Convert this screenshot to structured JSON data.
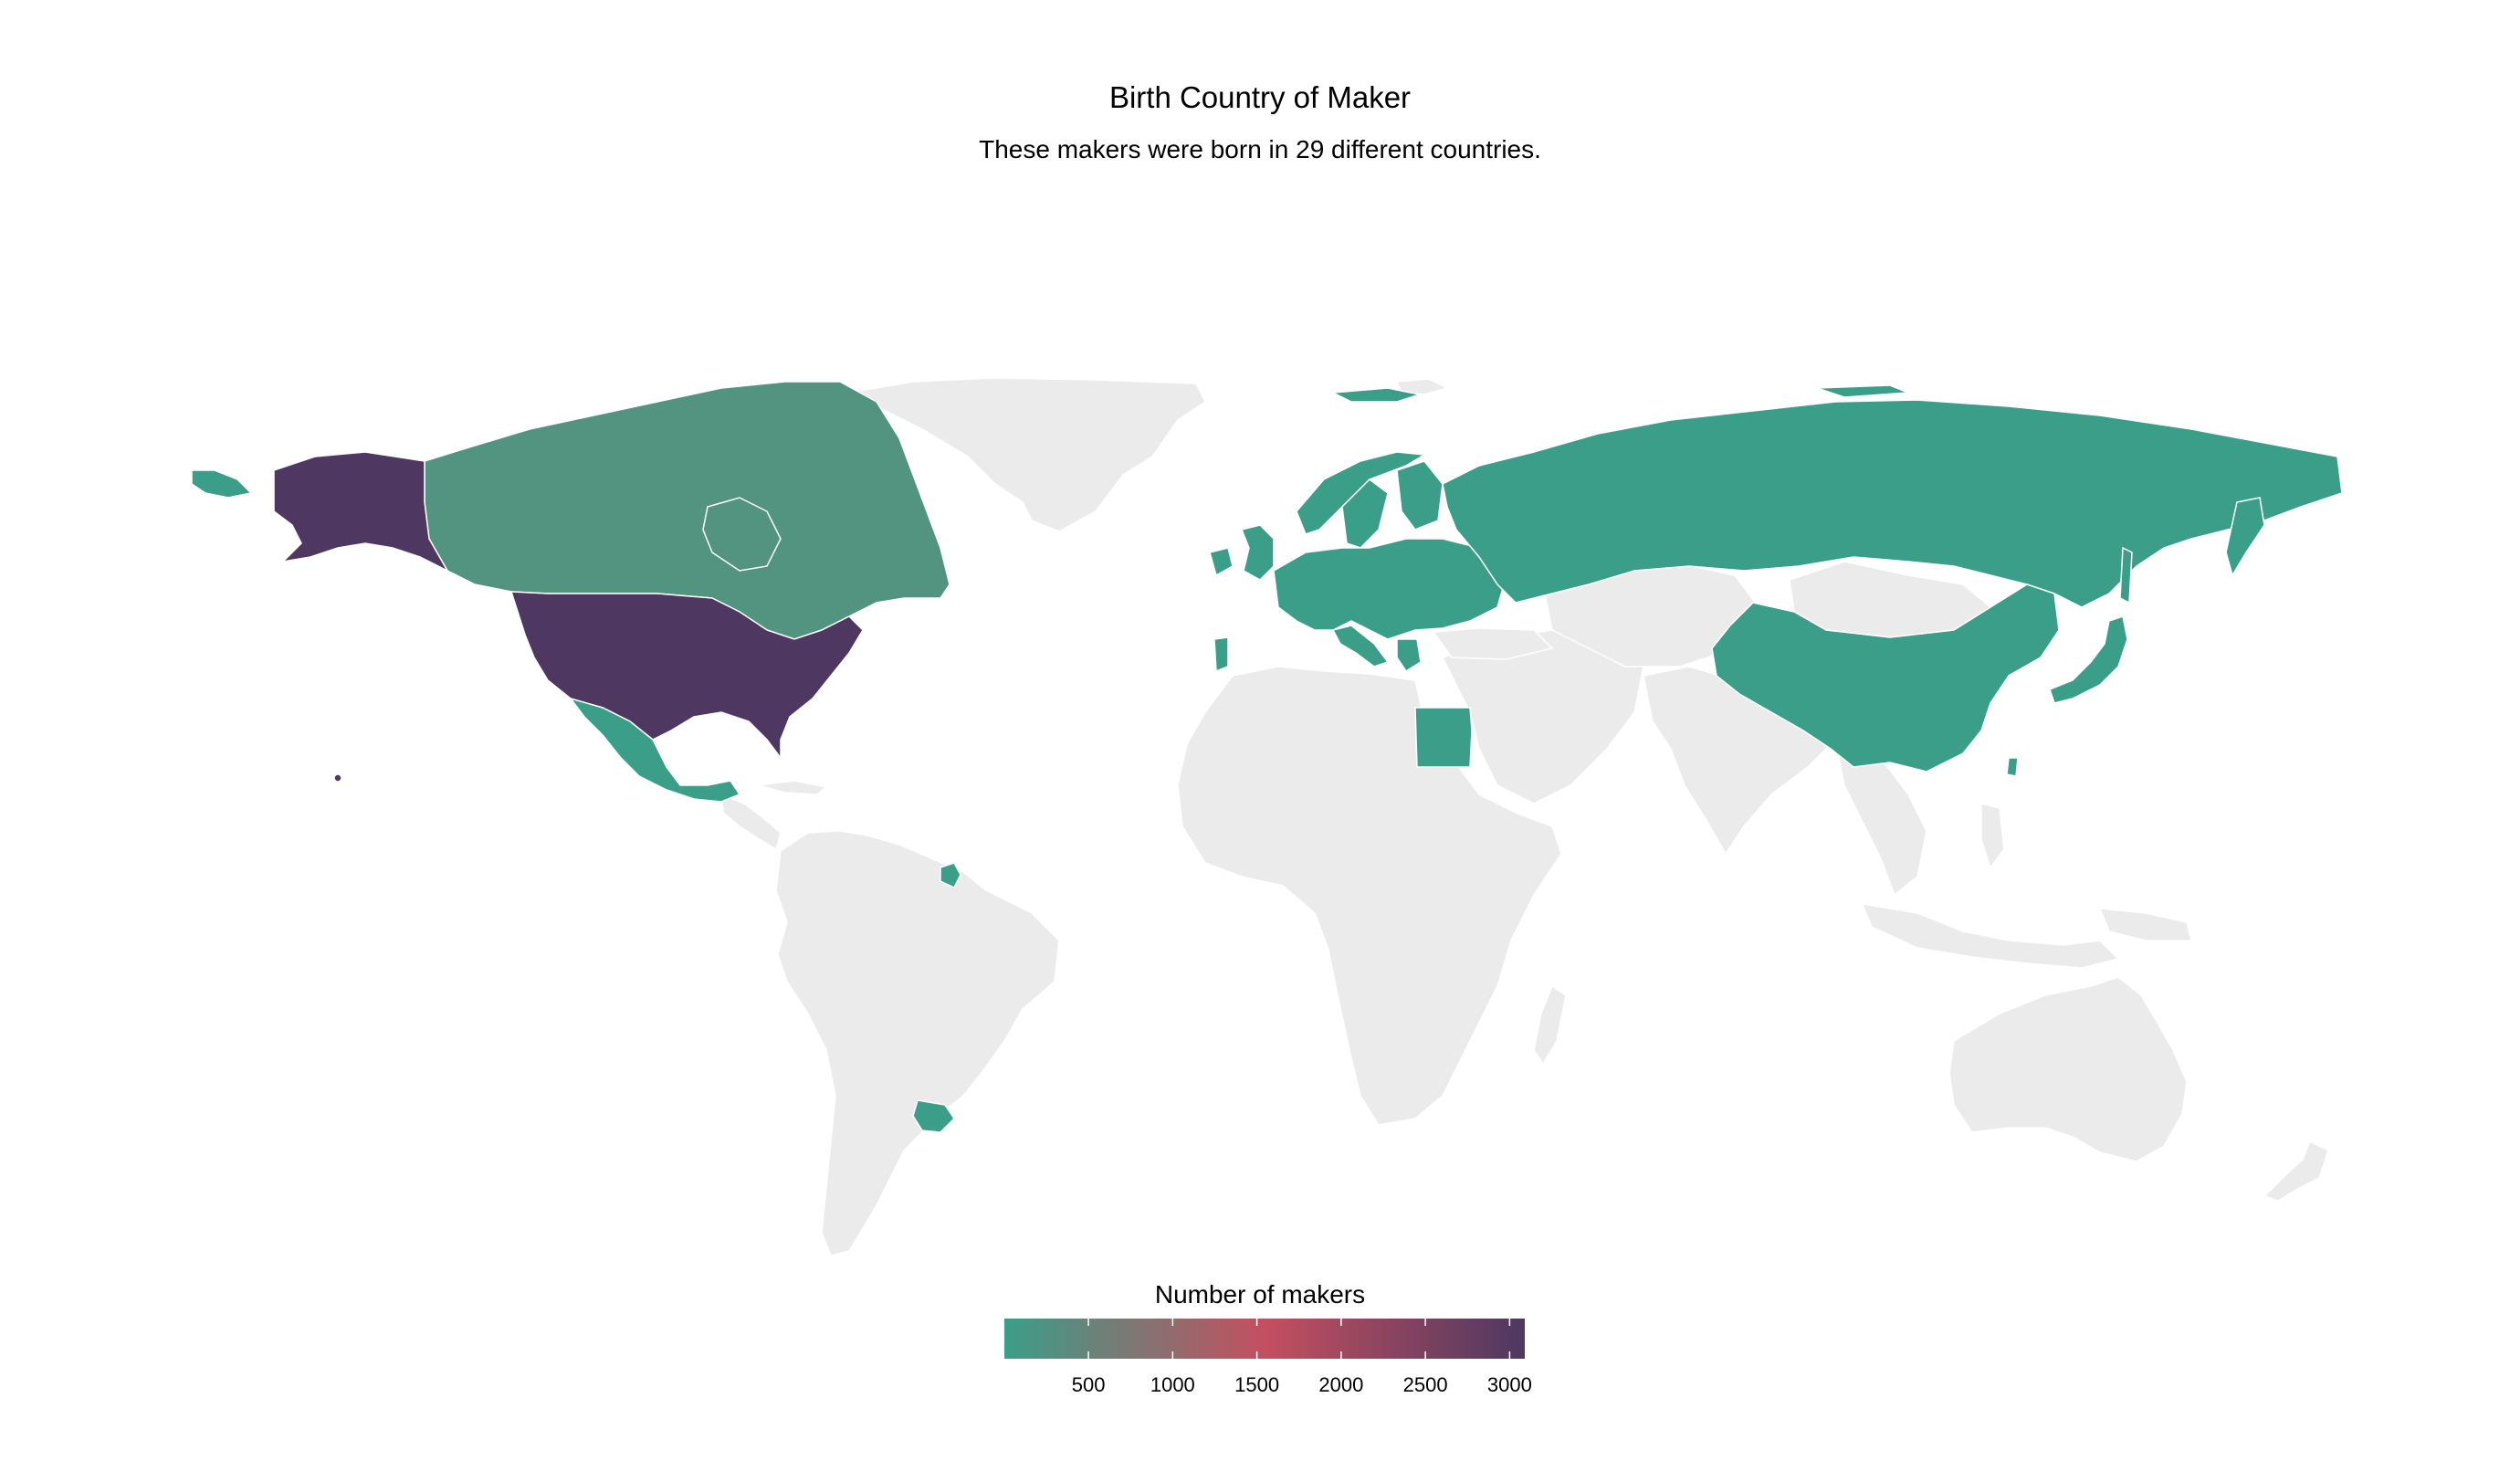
{
  "title": "Birth Country of Maker",
  "subtitle": "These makers were born in 29 different countries.",
  "legend": {
    "title": "Number of makers",
    "min": 1,
    "max": 3090,
    "ticks": [
      500,
      1000,
      1500,
      2000,
      2500,
      3000
    ],
    "tick_labels": [
      "500",
      "1000",
      "1500",
      "2000",
      "2500",
      "3000"
    ],
    "colors": [
      "#3a9e88",
      "#c44f5f",
      "#4e3861"
    ]
  },
  "colors": {
    "no_data": "#ebebeb",
    "low": "#3a9e88",
    "canada": "#52947f",
    "high": "#4e3861",
    "border": "#ffffff"
  },
  "chart_data": {
    "type": "choropleth",
    "regions": [
      {
        "id": "usa",
        "value": 3000
      },
      {
        "id": "alaska",
        "value": 3000
      },
      {
        "id": "canada",
        "value": 300
      },
      {
        "id": "mexico",
        "value": 10
      },
      {
        "id": "russia",
        "value": 10
      },
      {
        "id": "china",
        "value": 10
      },
      {
        "id": "japan",
        "value": 10
      },
      {
        "id": "egypt",
        "value": 10
      },
      {
        "id": "uruguay",
        "value": 10
      },
      {
        "id": "french-guiana",
        "value": 10
      },
      {
        "id": "europe",
        "value": 10
      },
      {
        "id": "uk",
        "value": 10
      },
      {
        "id": "ireland",
        "value": 10
      },
      {
        "id": "portugal",
        "value": 10
      },
      {
        "id": "norway",
        "value": 10
      },
      {
        "id": "sweden",
        "value": 10
      },
      {
        "id": "finland",
        "value": 10
      },
      {
        "id": "italy",
        "value": 10
      },
      {
        "id": "greece",
        "value": 10
      },
      {
        "id": "taiwan",
        "value": 10
      },
      {
        "id": "sakhalin",
        "value": 10
      }
    ]
  }
}
